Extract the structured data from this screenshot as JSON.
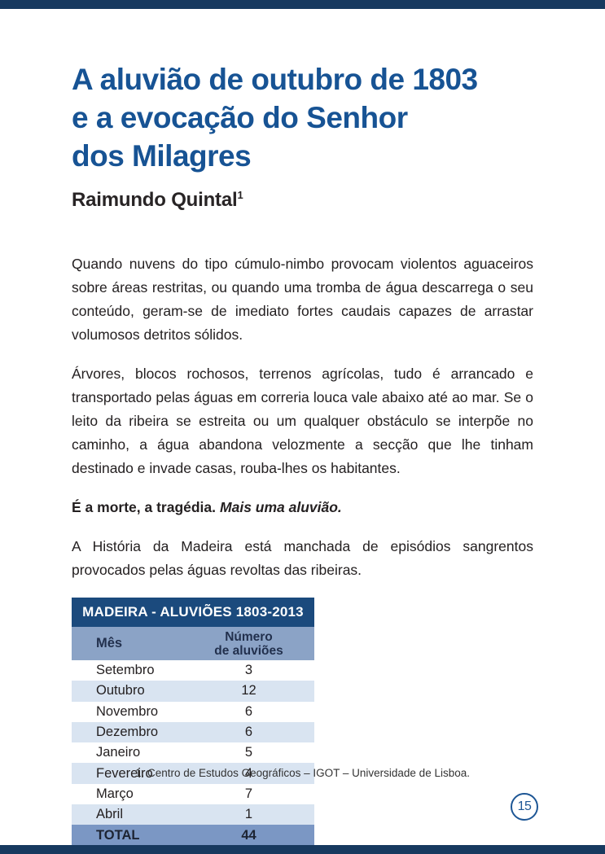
{
  "page": {
    "title_lines": [
      "A aluvião de outubro de 1803",
      "e a evocação do Senhor",
      "dos Milagres"
    ],
    "author": "Raimundo Quintal",
    "author_sup": "1",
    "paragraphs": [
      "Quando nuvens do tipo cúmulo-nimbo provocam violentos aguaceiros sobre áreas restritas, ou quando uma tromba de água descarrega o seu conteúdo, geram-se de imediato fortes caudais capazes de arrastar volumosos detritos sólidos.",
      "Árvores, blocos rochosos, terrenos agrícolas, tudo é arrancado e transportado pelas águas em correria louca vale abaixo até ao mar. Se o leito da ribeira se estreita ou um qualquer obstáculo se interpõe no caminho, a água abandona velozmente a secção que lhe tinham destinado e invade casas, rouba-lhes os habitantes.",
      "A História da Madeira está manchada de episódios sangrentos provocados pelas águas revoltas das ribeiras."
    ],
    "emphasis": {
      "bold": "É a morte, a tragédia.",
      "bold_italic": "Mais uma aluvião."
    },
    "footnote": "1. Centro de Estudos Geográficos – IGOT – Universidade de Lisboa.",
    "page_number": "15"
  },
  "table": {
    "title": "MADEIRA - ALUVIÕES 1803-2013",
    "header": {
      "col_month": "Mês",
      "col_count_line1": "Número",
      "col_count_line2": "de aluviões"
    },
    "rows": [
      {
        "month": "Setembro",
        "count": "3"
      },
      {
        "month": "Outubro",
        "count": "12"
      },
      {
        "month": "Novembro",
        "count": "6"
      },
      {
        "month": "Dezembro",
        "count": "6"
      },
      {
        "month": "Janeiro",
        "count": "5"
      },
      {
        "month": "Fevereiro",
        "count": "4"
      },
      {
        "month": "Março",
        "count": "7"
      },
      {
        "month": "Abril",
        "count": "1"
      }
    ],
    "total": {
      "label": "TOTAL",
      "value": "44"
    }
  },
  "colors": {
    "edge_bar": "#17395f",
    "title_blue": "#175394",
    "table_title_bg": "#1b4a7d",
    "table_header_bg": "#8ba3c6",
    "row_alt_bg": "#d9e4f1",
    "total_row_bg": "#7b97c4",
    "body_text": "#242021",
    "page_badge_blue": "#1d5695"
  }
}
